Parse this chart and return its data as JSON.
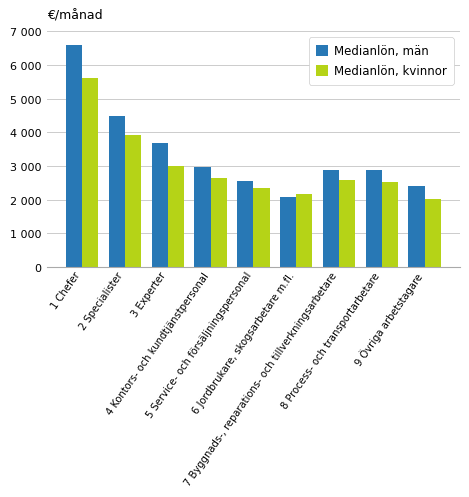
{
  "categories": [
    "1 Chefer",
    "2 Specialister",
    "3 Experter",
    "4 Kontors- och kundtjänstpersonal",
    "5 Service- och försäljningspersonal",
    "6 Jordbrukare, skogsarbetare m.fl.",
    "7 Byggnads-, reparations- och tillverkningsarbetare",
    "8 Process- och transportarbetare",
    "9 Övriga arbetstagare"
  ],
  "men_values": [
    6600,
    4500,
    3700,
    2975,
    2550,
    2075,
    2875,
    2900,
    2400
  ],
  "women_values": [
    5625,
    3925,
    3000,
    2650,
    2350,
    2175,
    2575,
    2525,
    2025
  ],
  "men_color": "#2878b5",
  "women_color": "#b5d317",
  "ylabel": "€/månad",
  "ylim": [
    0,
    7000
  ],
  "yticks": [
    0,
    1000,
    2000,
    3000,
    4000,
    5000,
    6000,
    7000
  ],
  "ytick_labels": [
    "0",
    "1 000",
    "2 000",
    "3 000",
    "4 000",
    "5 000",
    "6 000",
    "7 000"
  ],
  "legend_men": "Medianlön, män",
  "legend_women": "Medianlön, kvinnor",
  "background_color": "#ffffff",
  "grid_color": "#cccccc"
}
